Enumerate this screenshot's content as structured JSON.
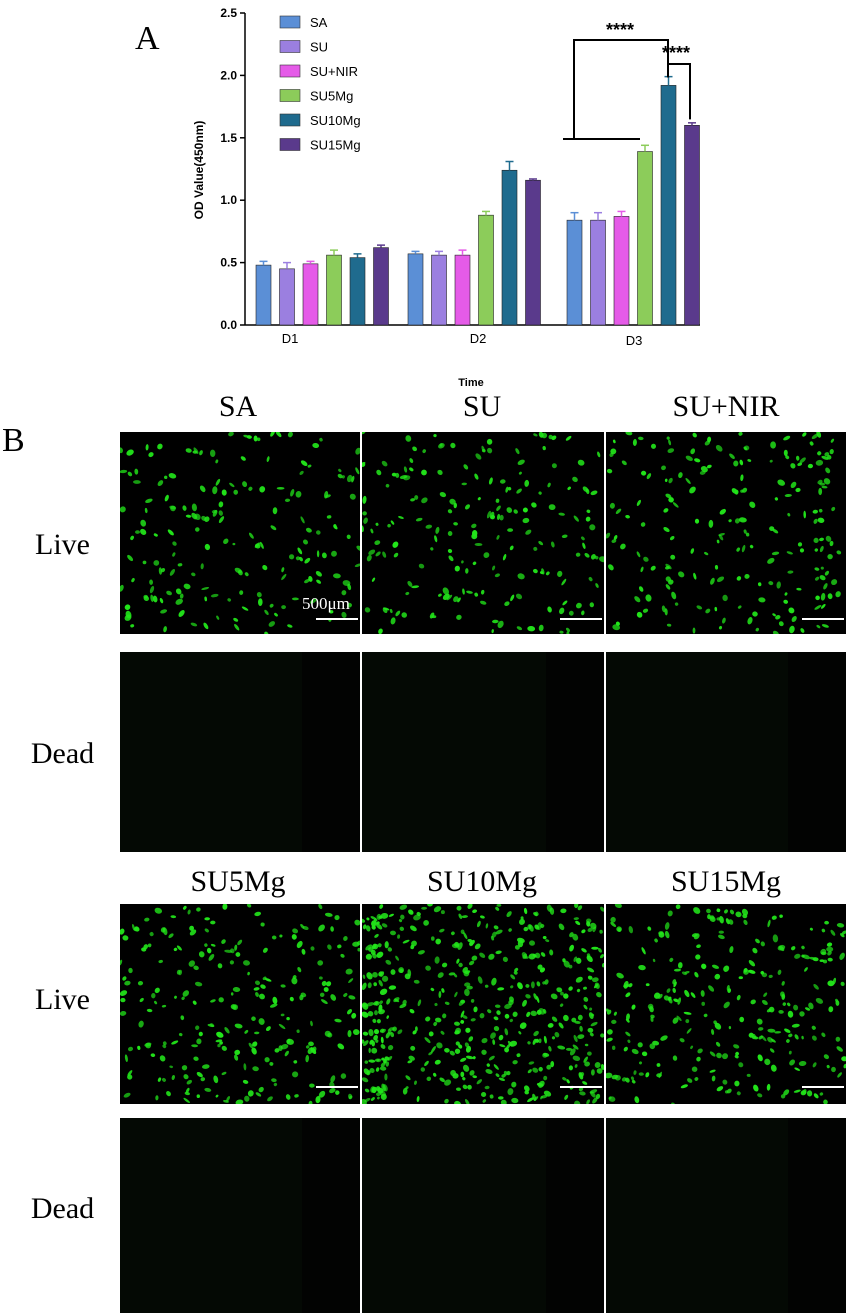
{
  "panel_a_label": "A",
  "panel_b_label": "B",
  "chart_data": {
    "type": "bar",
    "xlabel": "Time",
    "ylabel": "OD Value(450nm)",
    "categories": [
      "D1",
      "D2",
      "D3"
    ],
    "ylim": [
      0,
      2.5
    ],
    "yticks": [
      "0.0",
      "0.5",
      "1.0",
      "1.5",
      "2.0",
      "2.5"
    ],
    "legend_position": "top-left",
    "series": [
      {
        "name": "SA",
        "color": "#5b8fd6",
        "values": [
          0.48,
          0.57,
          0.84
        ],
        "errors": [
          0.03,
          0.02,
          0.06
        ]
      },
      {
        "name": "SU",
        "color": "#9b7fe0",
        "values": [
          0.45,
          0.56,
          0.84
        ],
        "errors": [
          0.05,
          0.03,
          0.06
        ]
      },
      {
        "name": "SU+NIR",
        "color": "#e55be8",
        "values": [
          0.49,
          0.56,
          0.87
        ],
        "errors": [
          0.02,
          0.04,
          0.04
        ]
      },
      {
        "name": "SU5Mg",
        "color": "#8ccc5a",
        "values": [
          0.56,
          0.88,
          1.39
        ],
        "errors": [
          0.04,
          0.03,
          0.05
        ]
      },
      {
        "name": "SU10Mg",
        "color": "#1f6b8e",
        "values": [
          0.54,
          1.24,
          1.92
        ],
        "errors": [
          0.03,
          0.07,
          0.07
        ]
      },
      {
        "name": "SU15Mg",
        "color": "#5a3a8c",
        "values": [
          0.62,
          1.16,
          1.6
        ],
        "errors": [
          0.02,
          0.01,
          0.02
        ]
      }
    ],
    "annotations": [
      "****",
      "****"
    ]
  },
  "panel_b": {
    "columns_top": [
      "SA",
      "SU",
      "SU+NIR"
    ],
    "columns_bottom": [
      "SU5Mg",
      "SU10Mg",
      "SU15Mg"
    ],
    "row_live": "Live",
    "row_dead": "Dead",
    "scale_label": "500μm",
    "live_color": "#22e61a"
  }
}
